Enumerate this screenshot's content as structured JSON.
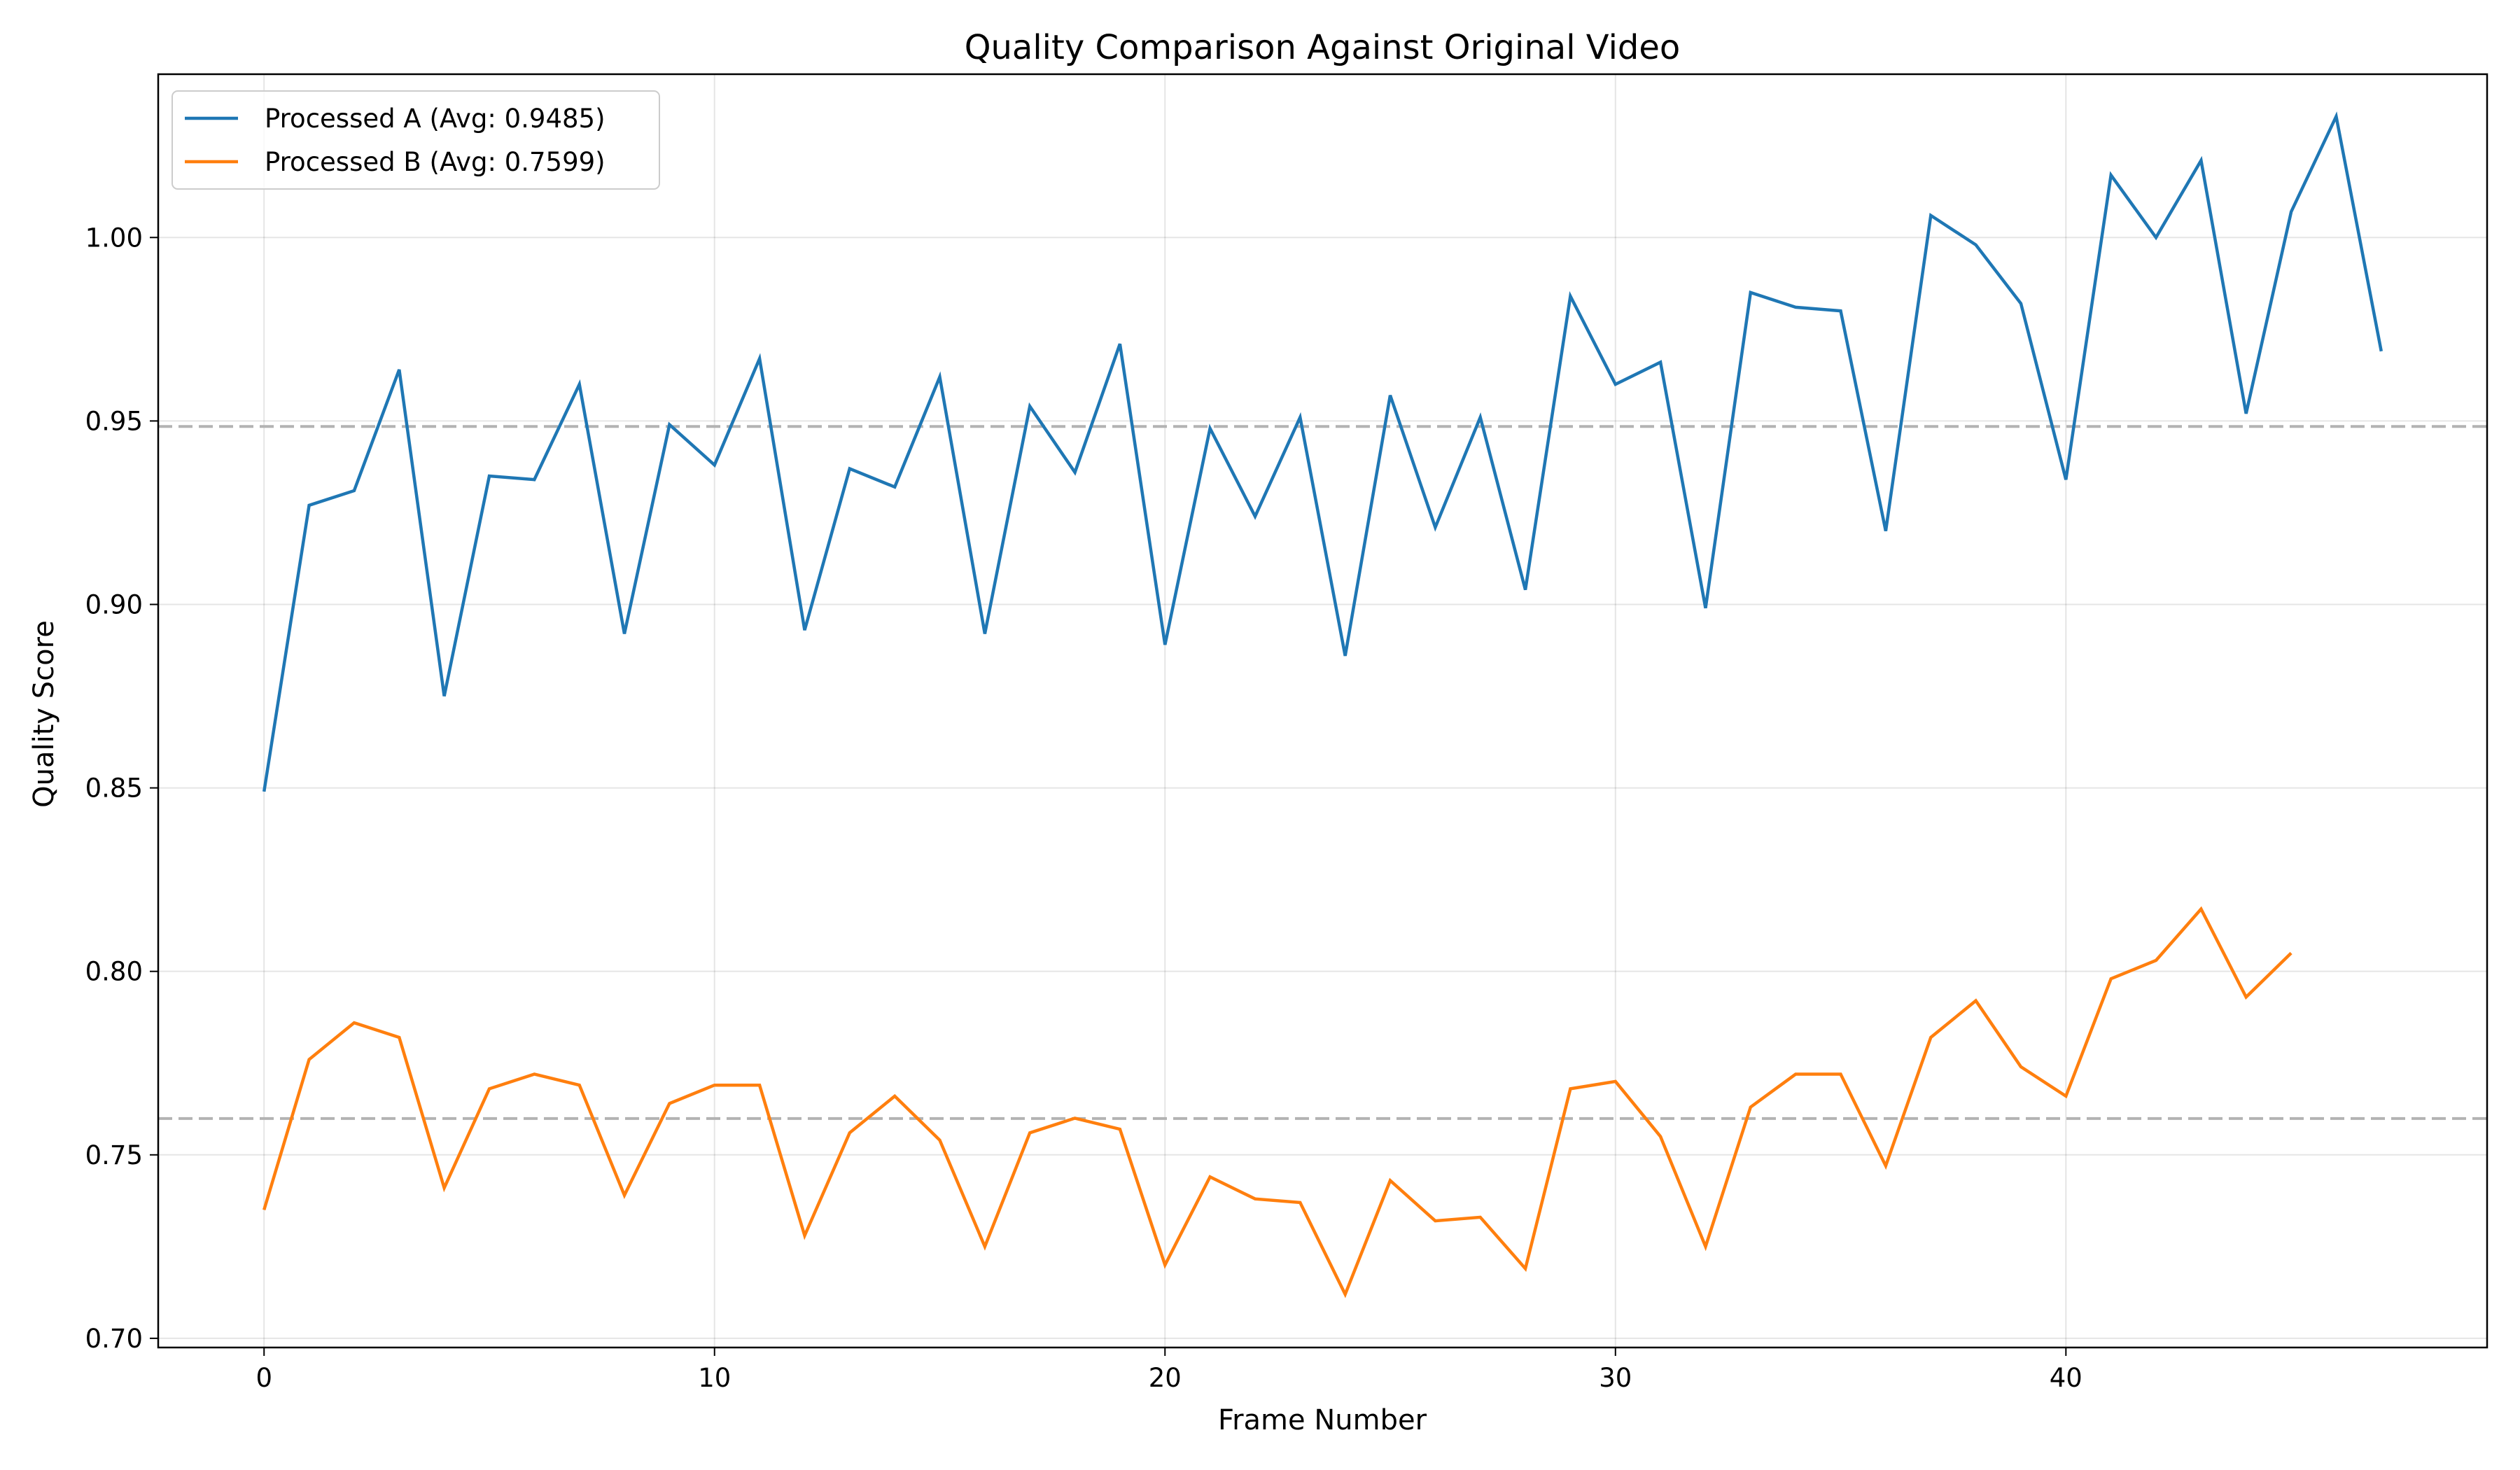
{
  "chart_data": {
    "type": "line",
    "title": "Quality Comparison Against Original Video",
    "xlabel": "Frame Number",
    "ylabel": "Quality Score",
    "xlim": [
      -2.35,
      49.35
    ],
    "ylim": [
      0.6975,
      1.0445
    ],
    "xticks": [
      0,
      10,
      20,
      30,
      40
    ],
    "yticks": [
      0.7,
      0.75,
      0.8,
      0.85,
      0.9,
      0.95,
      1.0
    ],
    "ytick_labels": [
      "0.70",
      "0.75",
      "0.80",
      "0.85",
      "0.90",
      "0.95",
      "1.00"
    ],
    "grid": true,
    "legend_position": "upper left",
    "series": [
      {
        "name": "Processed A (Avg: 0.9485)",
        "color": "#1f77b4",
        "average": 0.9485,
        "x": [
          0,
          1,
          2,
          3,
          4,
          5,
          6,
          7,
          8,
          9,
          10,
          11,
          12,
          13,
          14,
          15,
          16,
          17,
          18,
          19,
          20,
          21,
          22,
          23,
          24,
          25,
          26,
          27,
          28,
          29,
          30,
          31,
          32,
          33,
          34,
          35,
          36,
          37,
          38,
          39,
          40,
          41,
          42,
          43,
          44,
          45,
          46,
          47
        ],
        "values": [
          0.849,
          0.927,
          0.931,
          0.964,
          0.875,
          0.935,
          0.934,
          0.96,
          0.892,
          0.949,
          0.938,
          0.967,
          0.893,
          0.937,
          0.932,
          0.962,
          0.892,
          0.954,
          0.936,
          0.971,
          0.889,
          0.948,
          0.924,
          0.951,
          0.886,
          0.957,
          0.921,
          0.951,
          0.904,
          0.984,
          0.96,
          0.966,
          0.899,
          0.985,
          0.981,
          0.98,
          0.92,
          1.006,
          0.998,
          0.982,
          0.934,
          1.017,
          1.0,
          1.021,
          0.952,
          1.007,
          1.033,
          0.969
        ]
      },
      {
        "name": "Processed B (Avg: 0.7599)",
        "color": "#ff7f0e",
        "average": 0.7599,
        "x": [
          0,
          1,
          2,
          3,
          4,
          5,
          6,
          7,
          8,
          9,
          10,
          11,
          12,
          13,
          14,
          15,
          16,
          17,
          18,
          19,
          20,
          21,
          22,
          23,
          24,
          25,
          26,
          27,
          28,
          29,
          30,
          31,
          32,
          33,
          34,
          35,
          36,
          37,
          38,
          39,
          40,
          41,
          42,
          43,
          44,
          45
        ],
        "values": [
          0.735,
          0.776,
          0.786,
          0.782,
          0.741,
          0.768,
          0.772,
          0.769,
          0.739,
          0.764,
          0.769,
          0.769,
          0.728,
          0.756,
          0.766,
          0.754,
          0.725,
          0.756,
          0.76,
          0.757,
          0.72,
          0.744,
          0.738,
          0.737,
          0.712,
          0.743,
          0.732,
          0.733,
          0.719,
          0.768,
          0.77,
          0.755,
          0.725,
          0.763,
          0.772,
          0.772,
          0.747,
          0.782,
          0.792,
          0.774,
          0.766,
          0.798,
          0.803,
          0.817,
          0.793,
          0.805
        ]
      }
    ],
    "reference_line_color": "#b3b3b3"
  }
}
